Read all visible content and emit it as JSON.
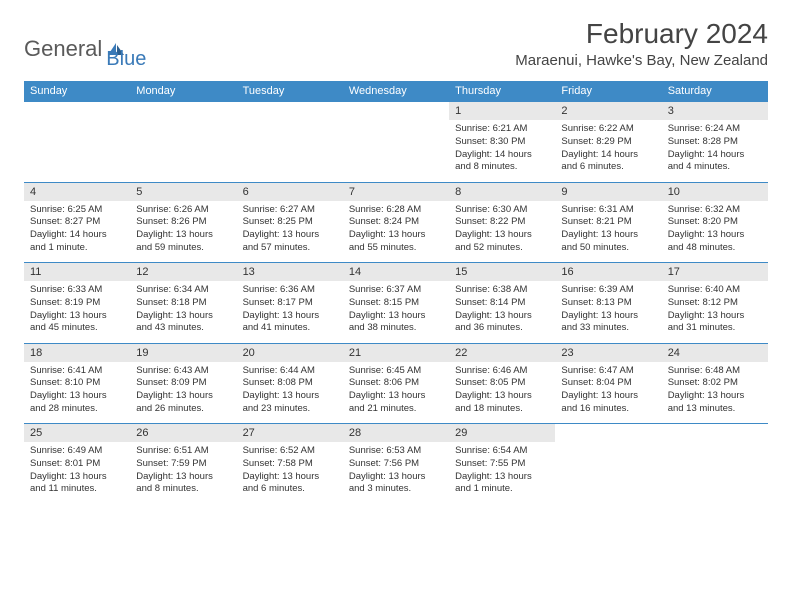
{
  "brand": {
    "general": "General",
    "blue": "Blue"
  },
  "title": "February 2024",
  "location": "Maraenui, Hawke's Bay, New Zealand",
  "colors": {
    "header_bg": "#3e8ac6",
    "header_text": "#ffffff",
    "daynum_bg": "#e8e8e8",
    "border_top": "#3e8ac6",
    "text": "#333333",
    "logo_gray": "#5a5a5a",
    "logo_blue": "#3a7ab8"
  },
  "weekdays": [
    "Sunday",
    "Monday",
    "Tuesday",
    "Wednesday",
    "Thursday",
    "Friday",
    "Saturday"
  ],
  "weeks": [
    [
      null,
      null,
      null,
      null,
      {
        "n": "1",
        "sr": "Sunrise: 6:21 AM",
        "ss": "Sunset: 8:30 PM",
        "dl1": "Daylight: 14 hours",
        "dl2": "and 8 minutes."
      },
      {
        "n": "2",
        "sr": "Sunrise: 6:22 AM",
        "ss": "Sunset: 8:29 PM",
        "dl1": "Daylight: 14 hours",
        "dl2": "and 6 minutes."
      },
      {
        "n": "3",
        "sr": "Sunrise: 6:24 AM",
        "ss": "Sunset: 8:28 PM",
        "dl1": "Daylight: 14 hours",
        "dl2": "and 4 minutes."
      }
    ],
    [
      {
        "n": "4",
        "sr": "Sunrise: 6:25 AM",
        "ss": "Sunset: 8:27 PM",
        "dl1": "Daylight: 14 hours",
        "dl2": "and 1 minute."
      },
      {
        "n": "5",
        "sr": "Sunrise: 6:26 AM",
        "ss": "Sunset: 8:26 PM",
        "dl1": "Daylight: 13 hours",
        "dl2": "and 59 minutes."
      },
      {
        "n": "6",
        "sr": "Sunrise: 6:27 AM",
        "ss": "Sunset: 8:25 PM",
        "dl1": "Daylight: 13 hours",
        "dl2": "and 57 minutes."
      },
      {
        "n": "7",
        "sr": "Sunrise: 6:28 AM",
        "ss": "Sunset: 8:24 PM",
        "dl1": "Daylight: 13 hours",
        "dl2": "and 55 minutes."
      },
      {
        "n": "8",
        "sr": "Sunrise: 6:30 AM",
        "ss": "Sunset: 8:22 PM",
        "dl1": "Daylight: 13 hours",
        "dl2": "and 52 minutes."
      },
      {
        "n": "9",
        "sr": "Sunrise: 6:31 AM",
        "ss": "Sunset: 8:21 PM",
        "dl1": "Daylight: 13 hours",
        "dl2": "and 50 minutes."
      },
      {
        "n": "10",
        "sr": "Sunrise: 6:32 AM",
        "ss": "Sunset: 8:20 PM",
        "dl1": "Daylight: 13 hours",
        "dl2": "and 48 minutes."
      }
    ],
    [
      {
        "n": "11",
        "sr": "Sunrise: 6:33 AM",
        "ss": "Sunset: 8:19 PM",
        "dl1": "Daylight: 13 hours",
        "dl2": "and 45 minutes."
      },
      {
        "n": "12",
        "sr": "Sunrise: 6:34 AM",
        "ss": "Sunset: 8:18 PM",
        "dl1": "Daylight: 13 hours",
        "dl2": "and 43 minutes."
      },
      {
        "n": "13",
        "sr": "Sunrise: 6:36 AM",
        "ss": "Sunset: 8:17 PM",
        "dl1": "Daylight: 13 hours",
        "dl2": "and 41 minutes."
      },
      {
        "n": "14",
        "sr": "Sunrise: 6:37 AM",
        "ss": "Sunset: 8:15 PM",
        "dl1": "Daylight: 13 hours",
        "dl2": "and 38 minutes."
      },
      {
        "n": "15",
        "sr": "Sunrise: 6:38 AM",
        "ss": "Sunset: 8:14 PM",
        "dl1": "Daylight: 13 hours",
        "dl2": "and 36 minutes."
      },
      {
        "n": "16",
        "sr": "Sunrise: 6:39 AM",
        "ss": "Sunset: 8:13 PM",
        "dl1": "Daylight: 13 hours",
        "dl2": "and 33 minutes."
      },
      {
        "n": "17",
        "sr": "Sunrise: 6:40 AM",
        "ss": "Sunset: 8:12 PM",
        "dl1": "Daylight: 13 hours",
        "dl2": "and 31 minutes."
      }
    ],
    [
      {
        "n": "18",
        "sr": "Sunrise: 6:41 AM",
        "ss": "Sunset: 8:10 PM",
        "dl1": "Daylight: 13 hours",
        "dl2": "and 28 minutes."
      },
      {
        "n": "19",
        "sr": "Sunrise: 6:43 AM",
        "ss": "Sunset: 8:09 PM",
        "dl1": "Daylight: 13 hours",
        "dl2": "and 26 minutes."
      },
      {
        "n": "20",
        "sr": "Sunrise: 6:44 AM",
        "ss": "Sunset: 8:08 PM",
        "dl1": "Daylight: 13 hours",
        "dl2": "and 23 minutes."
      },
      {
        "n": "21",
        "sr": "Sunrise: 6:45 AM",
        "ss": "Sunset: 8:06 PM",
        "dl1": "Daylight: 13 hours",
        "dl2": "and 21 minutes."
      },
      {
        "n": "22",
        "sr": "Sunrise: 6:46 AM",
        "ss": "Sunset: 8:05 PM",
        "dl1": "Daylight: 13 hours",
        "dl2": "and 18 minutes."
      },
      {
        "n": "23",
        "sr": "Sunrise: 6:47 AM",
        "ss": "Sunset: 8:04 PM",
        "dl1": "Daylight: 13 hours",
        "dl2": "and 16 minutes."
      },
      {
        "n": "24",
        "sr": "Sunrise: 6:48 AM",
        "ss": "Sunset: 8:02 PM",
        "dl1": "Daylight: 13 hours",
        "dl2": "and 13 minutes."
      }
    ],
    [
      {
        "n": "25",
        "sr": "Sunrise: 6:49 AM",
        "ss": "Sunset: 8:01 PM",
        "dl1": "Daylight: 13 hours",
        "dl2": "and 11 minutes."
      },
      {
        "n": "26",
        "sr": "Sunrise: 6:51 AM",
        "ss": "Sunset: 7:59 PM",
        "dl1": "Daylight: 13 hours",
        "dl2": "and 8 minutes."
      },
      {
        "n": "27",
        "sr": "Sunrise: 6:52 AM",
        "ss": "Sunset: 7:58 PM",
        "dl1": "Daylight: 13 hours",
        "dl2": "and 6 minutes."
      },
      {
        "n": "28",
        "sr": "Sunrise: 6:53 AM",
        "ss": "Sunset: 7:56 PM",
        "dl1": "Daylight: 13 hours",
        "dl2": "and 3 minutes."
      },
      {
        "n": "29",
        "sr": "Sunrise: 6:54 AM",
        "ss": "Sunset: 7:55 PM",
        "dl1": "Daylight: 13 hours",
        "dl2": "and 1 minute."
      },
      null,
      null
    ]
  ]
}
